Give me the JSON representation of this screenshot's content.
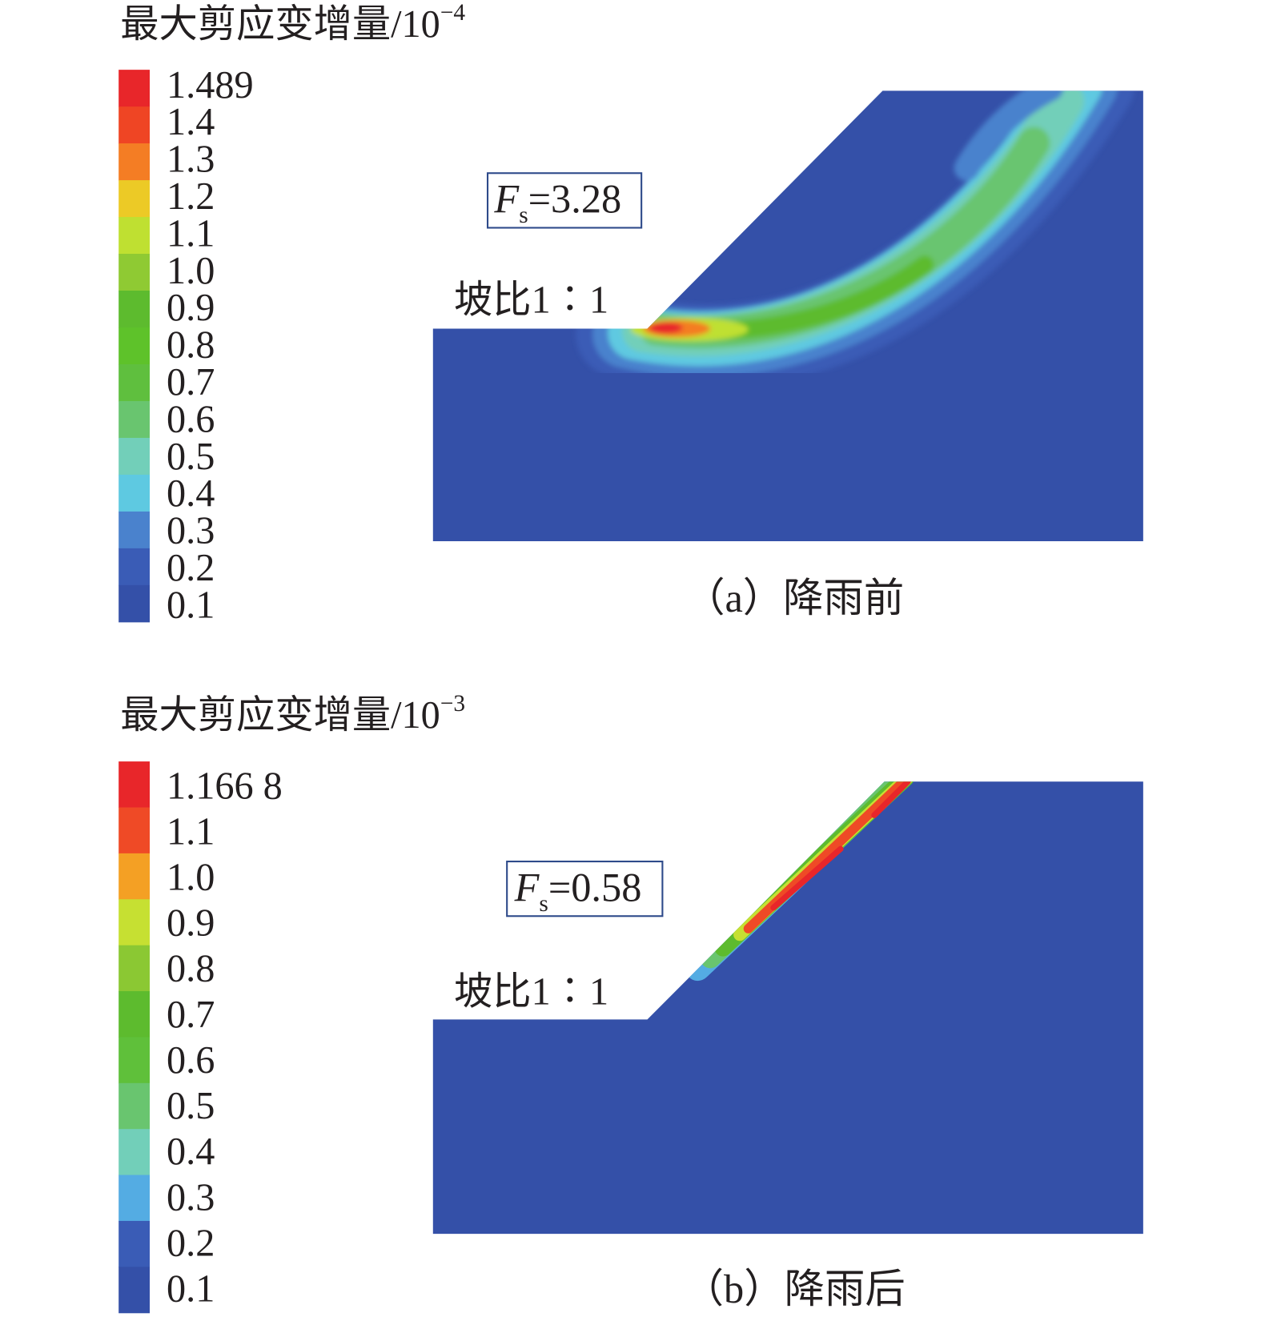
{
  "panels": [
    {
      "legend_title": "最大剪应变增量/10",
      "legend_exponent": "−4",
      "legend_labels": [
        "1.489",
        "1.4",
        "1.3",
        "1.2",
        "1.1",
        "1.0",
        "0.9",
        "0.8",
        "0.7",
        "0.6",
        "0.5",
        "0.4",
        "0.3",
        "0.2",
        "0.1"
      ],
      "legend_colors": [
        "#e8262a",
        "#ef4524",
        "#f47d24",
        "#ecca26",
        "#bfe031",
        "#8fca33",
        "#5dbb2e",
        "#5ec22a",
        "#5fbf3e",
        "#69c56f",
        "#72cfb9",
        "#5ec9e1",
        "#4a82cd",
        "#3a5cb6",
        "#3450a8"
      ],
      "fs_symbol": "F",
      "fs_subscript": "s",
      "fs_value": "=3.28",
      "slope_label": "坡比1∶1",
      "caption": "（a）降雨前"
    },
    {
      "legend_title": "最大剪应变增量/10",
      "legend_exponent": "−3",
      "legend_labels": [
        "1.166 8",
        "1.1",
        "1.0",
        "0.9",
        "0.8",
        "0.7",
        "0.6",
        "0.5",
        "0.4",
        "0.3",
        "0.2",
        "0.1"
      ],
      "legend_colors": [
        "#e8262a",
        "#ef4a26",
        "#f4a024",
        "#c6e032",
        "#8bc833",
        "#5dbb2e",
        "#5fc03a",
        "#69c56f",
        "#72cfb9",
        "#54ace3",
        "#3a5cb6",
        "#3450a8"
      ],
      "fs_symbol": "F",
      "fs_subscript": "s",
      "fs_value": "=0.58",
      "slope_label": "坡比1∶1",
      "caption": "（b）降雨后"
    }
  ],
  "colors": {
    "soil": "#3450a8",
    "box_border": "#2e4a8a"
  }
}
